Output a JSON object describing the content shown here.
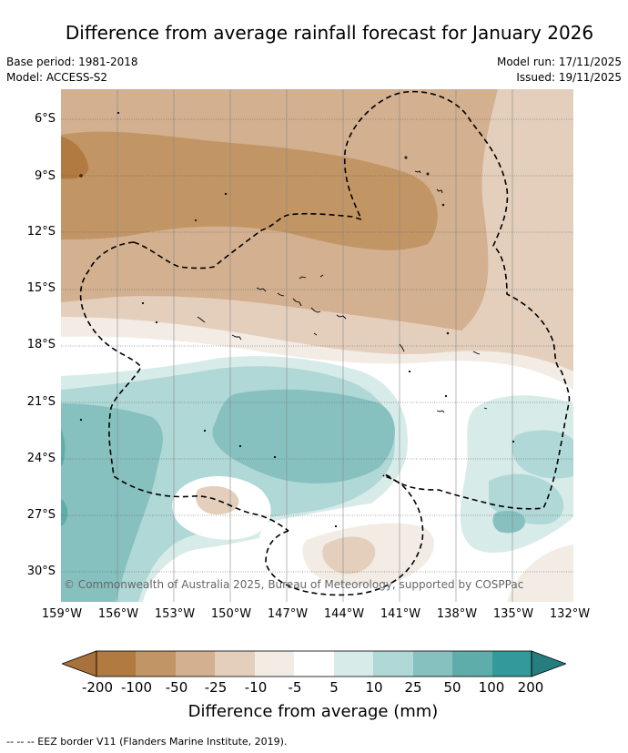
{
  "title": "Difference from average rainfall forecast for January 2026",
  "base_period": "Base period: 1981-2018",
  "model": "Model: ACCESS-S2",
  "model_run": "Model run: 17/11/2025",
  "issued": "Issued: 19/11/2025",
  "copyright": "© Commonwealth of Australia 2025, Bureau of Meteorology, supported by COSPPac",
  "lat_labels": [
    "6°S",
    "9°S",
    "12°S",
    "15°S",
    "18°S",
    "21°S",
    "24°S",
    "27°S",
    "30°S"
  ],
  "lon_labels": [
    "159°W",
    "156°W",
    "153°W",
    "150°W",
    "147°W",
    "144°W",
    "141°W",
    "138°W",
    "135°W",
    "132°W"
  ],
  "colorbar": {
    "ticks": [
      "-200",
      "-100",
      "-50",
      "-25",
      "-10",
      "-5",
      "5",
      "10",
      "25",
      "50",
      "100",
      "200"
    ],
    "colors": [
      "#a8703a",
      "#b17a40",
      "#c29565",
      "#d3b08f",
      "#e4cfbd",
      "#f2ece5",
      "#ffffff",
      "#d7ebe9",
      "#afd8d6",
      "#86c1bf",
      "#5eadaa",
      "#33999a",
      "#267d7e"
    ],
    "label": "Difference from average (mm)"
  },
  "legend_eez": "--  --  -- EEZ border V11 (Flanders Marine Institute, 2019)."
}
